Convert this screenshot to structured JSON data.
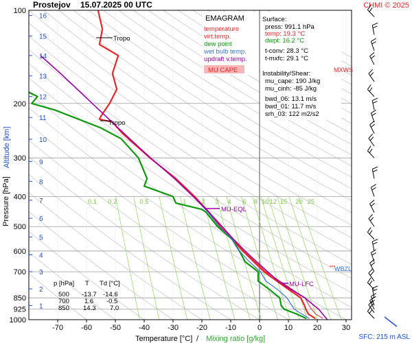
{
  "header": {
    "station": "Prostejov",
    "datetime": "15.07.2025 00 UTC",
    "credit": "CHMI © 2025"
  },
  "axes": {
    "ylabel": "Pressure [hPa]",
    "ylabel_alt": "Altitude [km]",
    "xlabel": "Temperature [°C]",
    "xlabel_sep": "/",
    "xlabel_mix": "Mixing ratio [g/kg]",
    "sfc_label": "SFC: 215 m ASL"
  },
  "legend": {
    "title": "EMAGRAM",
    "items": [
      {
        "label": "temperature",
        "color": "#e8262a"
      },
      {
        "label": "virt.temp.",
        "color": "#e8262a"
      },
      {
        "label": "dew point",
        "color": "#0a9a0a"
      },
      {
        "label": "wet bulb temp.",
        "color": "#3a72d8"
      },
      {
        "label": "updraft v.temp.",
        "color": "#9b00a8"
      }
    ],
    "mucape_label": "MU CAPE"
  },
  "stats": {
    "surface_title": "Surface:",
    "surface": [
      {
        "text": "press: 991.1 hPa",
        "color": "#000000"
      },
      {
        "text": "temp: 19.3 °C",
        "color": "#e8262a"
      },
      {
        "text": "dwpt: 16.2 °C",
        "color": "#0a9a0a"
      }
    ],
    "conv": [
      "t-conv: 28.3 °C",
      "t-mxfc: 29.1 °C"
    ],
    "inst_title": "Instability/Shear:",
    "inst": [
      "mu_cape: 190 J/kg",
      "mu_cinh: -85 J/kg",
      "bwd_06: 13.1 m/s",
      "bwd_01: 11.7 m/s",
      "srh_03: 122 m2/s2"
    ]
  },
  "table": {
    "headers": [
      "p [hPa]",
      "T",
      "Td [°C]"
    ],
    "rows": [
      [
        "500",
        "-13.7",
        "-14.6"
      ],
      [
        "700",
        "1.6",
        "-0.5"
      ],
      [
        "850",
        "14.3",
        "7.0"
      ]
    ]
  },
  "annotations": {
    "tropo": "Tropo",
    "mu_eql": "MU-EQL",
    "mu_lfc": "MU-LFC",
    "mxws": "MXWS",
    "wbzl": "WBZL"
  },
  "colors": {
    "temperature": "#e8262a",
    "dewpoint": "#0a9a0a",
    "wetbulb": "#3a72d8",
    "updraft": "#9b00a8",
    "mixing": "#8ed65a",
    "isobar": "#9a9a9a"
  },
  "chart_data": {
    "type": "line",
    "title": "Prostejov 15.07.2025 00 UTC",
    "xlabel": "Temperature [°C] / Mixing ratio [g/kg]",
    "ylabel": "Pressure [hPa]",
    "xlim": [
      -80,
      35
    ],
    "ylim": [
      1000,
      100
    ],
    "y_scale": "log",
    "x_ticks": [
      -70,
      -60,
      -50,
      -40,
      -30,
      -20,
      -10,
      0,
      10,
      20,
      30
    ],
    "y_ticks": [
      100,
      200,
      300,
      400,
      500,
      600,
      700,
      850,
      925,
      1000
    ],
    "alt_km_ticks": [
      16,
      15,
      14,
      13,
      12,
      11,
      10,
      9,
      8,
      7,
      6,
      5,
      4,
      3,
      2,
      1
    ],
    "alt_km_pressure": [
      104,
      121,
      140,
      163,
      190,
      222,
      261,
      308,
      357,
      411,
      470,
      540,
      617,
      700,
      795,
      900
    ],
    "mixing_ratio_labels": [
      "0.1",
      "0.2",
      "0.5",
      "1",
      "2",
      "3",
      "4",
      "6",
      "8",
      "10",
      "12",
      "15",
      "20",
      "25"
    ],
    "mixing_ratio_label_x": [
      -58,
      -51,
      -40,
      -26,
      -19.5,
      -14.8,
      -10.5,
      -5.3,
      -1.3,
      2,
      4.7,
      8.3,
      13.7,
      17.8
    ],
    "tropopause_hpa": [
      129,
      225
    ],
    "grid": true,
    "series": [
      {
        "name": "temperature",
        "p": [
          991,
          960,
          925,
          900,
          850,
          800,
          750,
          700,
          650,
          600,
          550,
          500,
          450,
          400,
          350,
          300,
          250,
          230,
          225,
          220,
          200,
          180,
          160,
          140,
          129,
          115,
          100
        ],
        "t": [
          19.3,
          17.0,
          16.0,
          15.6,
          14.3,
          10.2,
          6.0,
          1.6,
          -2.0,
          -5.8,
          -9.5,
          -13.7,
          -17.5,
          -22.5,
          -29.0,
          -38.0,
          -47.5,
          -51.0,
          -55.5,
          -55.0,
          -52.0,
          -49.5,
          -51.0,
          -49.0,
          -55.5,
          -54.5,
          -56.0
        ]
      },
      {
        "name": "virt.temp.",
        "p": [
          991,
          960,
          925,
          900,
          850,
          800,
          750,
          700,
          650,
          600,
          550,
          500,
          450,
          400,
          350,
          300,
          250
        ],
        "t": [
          22.0,
          19.5,
          18.0,
          17.2,
          15.7,
          11.5,
          7.0,
          2.2,
          -1.5,
          -5.5,
          -9.3,
          -13.5,
          -17.4,
          -22.4,
          -29.0,
          -38.0,
          -47.5
        ]
      },
      {
        "name": "dew point",
        "p": [
          991,
          960,
          925,
          900,
          850,
          800,
          750,
          700,
          650,
          600,
          550,
          500,
          450,
          440,
          420,
          400,
          370,
          350,
          300,
          260,
          240,
          210,
          200,
          190,
          180,
          160,
          140,
          130
        ],
        "t": [
          16.2,
          13.0,
          8.5,
          7.5,
          7.0,
          3.5,
          -0.5,
          -0.5,
          -5.0,
          -7.0,
          -9.5,
          -14.6,
          -18.5,
          -20.0,
          -29.0,
          -30.0,
          -40.0,
          -39.0,
          -42.0,
          -48.0,
          -55.0,
          -71.0,
          -79.0,
          -77.0,
          -82.0,
          -81.0,
          -83.0,
          -85.0
        ]
      },
      {
        "name": "wet bulb temp.",
        "p": [
          991,
          925,
          850,
          800,
          750,
          700,
          650,
          600,
          550,
          500,
          450,
          400
        ],
        "t": [
          17.2,
          12.0,
          9.5,
          6.3,
          2.2,
          0.3,
          -3.5,
          -7.0,
          -9.5,
          -14.0,
          -17.8,
          -23.0
        ]
      },
      {
        "name": "updraft v.temp.",
        "p": [
          1000,
          925,
          850,
          800,
          750,
          700,
          650,
          600,
          550,
          500,
          450,
          400,
          350,
          300,
          250,
          200,
          160,
          140
        ],
        "t": [
          23.5,
          20.5,
          15.7,
          11.0,
          6.5,
          2.8,
          -1.0,
          -5.0,
          -9.0,
          -13.0,
          -17.5,
          -23.0,
          -29.5,
          -37.8,
          -47.0,
          -58.0,
          -69.0,
          -76.0
        ]
      }
    ],
    "levels": [
      {
        "name": "MU-EQL",
        "p": 445
      },
      {
        "name": "MU-LFC",
        "p": 760
      },
      {
        "name": "WBZL",
        "p": 685
      },
      {
        "name": "MXWS",
        "p": 155
      }
    ],
    "wind_barbs_hpa": [
      991,
      950,
      925,
      900,
      850,
      800,
      750,
      700,
      650,
      600,
      550,
      500,
      450,
      400,
      350,
      300,
      275,
      250,
      230,
      210,
      190,
      170,
      150,
      135,
      120,
      105
    ]
  }
}
